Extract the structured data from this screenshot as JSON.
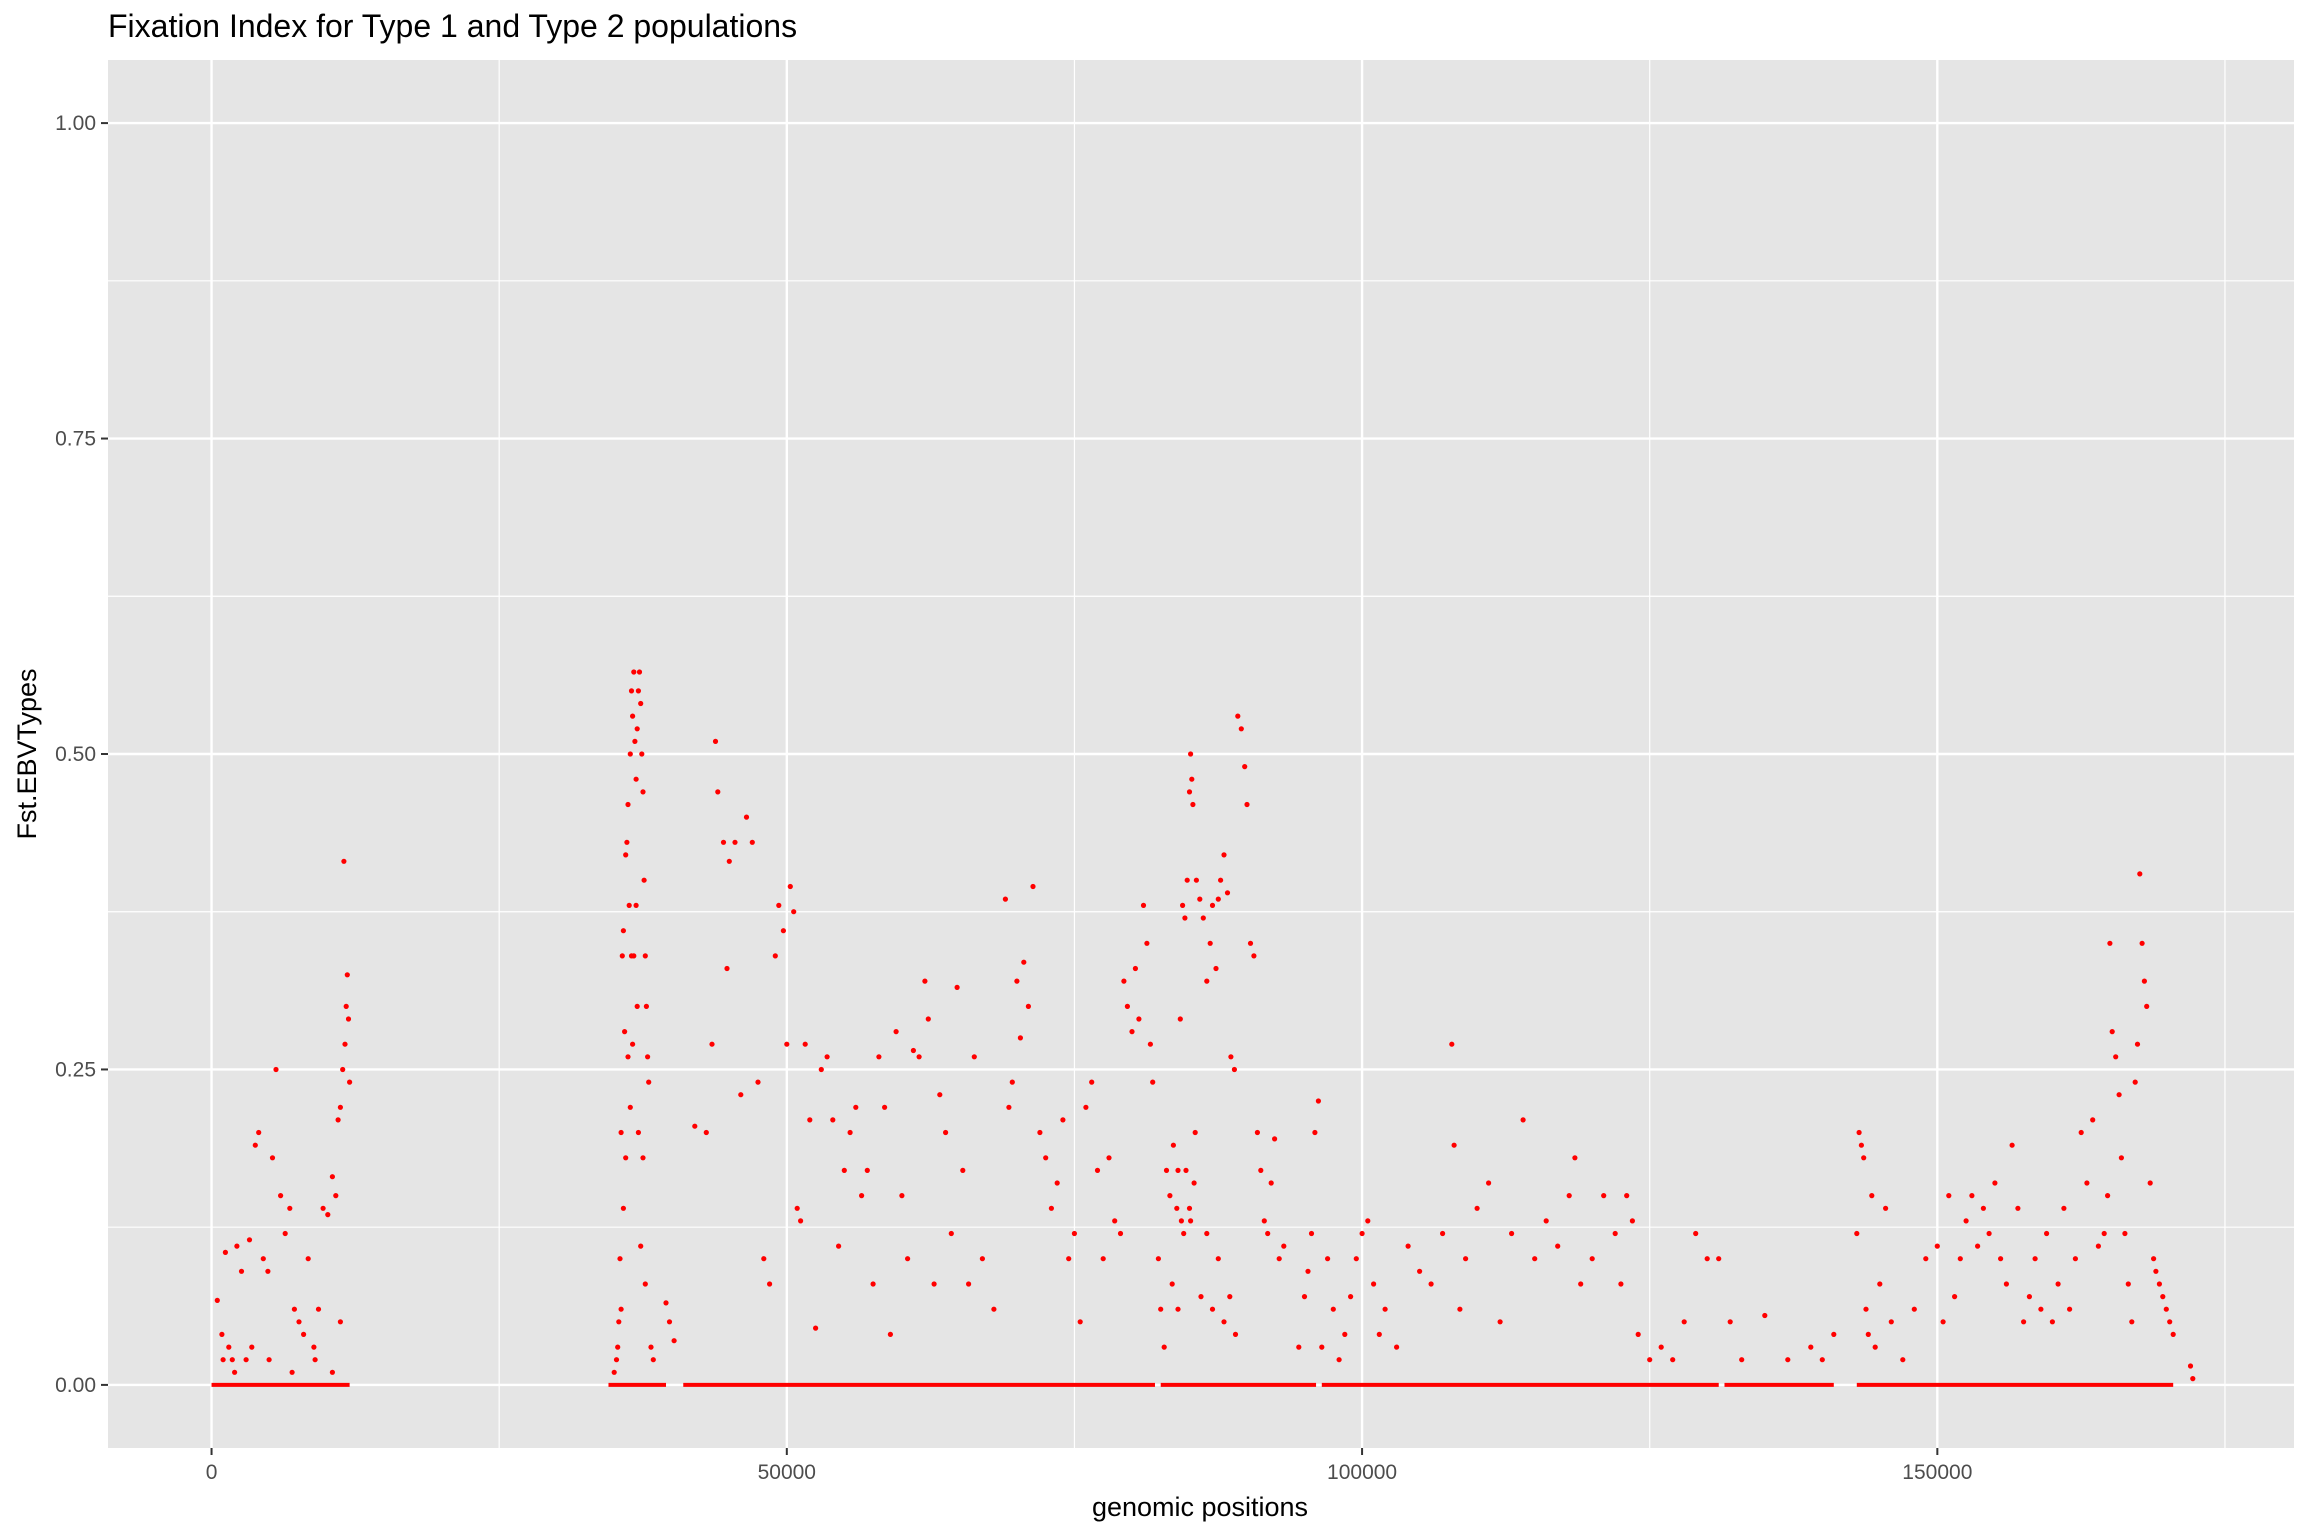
{
  "chart_data": {
    "type": "scatter",
    "title": "Fixation Index for Type 1 and Type 2 populations",
    "xlabel": "genomic positions",
    "ylabel": "Fst.EBVTypes",
    "xlim": [
      -9000,
      181000
    ],
    "ylim": [
      -0.05,
      1.05
    ],
    "x_ticks": [
      0,
      50000,
      100000,
      150000
    ],
    "x_tick_labels": [
      "0",
      "50000",
      "100000",
      "150000"
    ],
    "y_ticks": [
      0.0,
      0.25,
      0.5,
      0.75,
      1.0
    ],
    "y_tick_labels": [
      "0.00",
      "0.25",
      "0.50",
      "0.75",
      "1.00"
    ],
    "grid": true,
    "point_color": "#ff0000",
    "panel_color": "#e5e5e5",
    "grid_color": "#ffffff",
    "baseline_segments": [
      [
        0,
        12000
      ],
      [
        34500,
        39500
      ],
      [
        41000,
        82000
      ],
      [
        82500,
        96000
      ],
      [
        96500,
        131000
      ],
      [
        131500,
        141000
      ],
      [
        143000,
        170500
      ]
    ],
    "points": [
      [
        500,
        0.067
      ],
      [
        900,
        0.04
      ],
      [
        1200,
        0.105
      ],
      [
        1500,
        0.03
      ],
      [
        1800,
        0.02
      ],
      [
        2200,
        0.11
      ],
      [
        2600,
        0.09
      ],
      [
        3000,
        0.02
      ],
      [
        3300,
        0.115
      ],
      [
        3800,
        0.19
      ],
      [
        4100,
        0.2
      ],
      [
        4500,
        0.1
      ],
      [
        4900,
        0.09
      ],
      [
        5300,
        0.18
      ],
      [
        5600,
        0.25
      ],
      [
        6000,
        0.15
      ],
      [
        6400,
        0.12
      ],
      [
        6800,
        0.14
      ],
      [
        7200,
        0.06
      ],
      [
        7600,
        0.05
      ],
      [
        8000,
        0.04
      ],
      [
        8400,
        0.1
      ],
      [
        8900,
        0.03
      ],
      [
        9300,
        0.06
      ],
      [
        9700,
        0.14
      ],
      [
        10100,
        0.135
      ],
      [
        10500,
        0.165
      ],
      [
        10800,
        0.15
      ],
      [
        11000,
        0.21
      ],
      [
        11200,
        0.22
      ],
      [
        11400,
        0.25
      ],
      [
        11500,
        0.415
      ],
      [
        11600,
        0.27
      ],
      [
        11700,
        0.3
      ],
      [
        11800,
        0.325
      ],
      [
        11900,
        0.29
      ],
      [
        12000,
        0.24
      ],
      [
        1000,
        0.02
      ],
      [
        2000,
        0.01
      ],
      [
        3500,
        0.03
      ],
      [
        5000,
        0.02
      ],
      [
        7000,
        0.01
      ],
      [
        9000,
        0.02
      ],
      [
        10500,
        0.01
      ],
      [
        11200,
        0.05
      ],
      [
        35000,
        0.01
      ],
      [
        35200,
        0.02
      ],
      [
        35400,
        0.05
      ],
      [
        35500,
        0.1
      ],
      [
        35600,
        0.2
      ],
      [
        35700,
        0.34
      ],
      [
        35800,
        0.36
      ],
      [
        35900,
        0.28
      ],
      [
        36000,
        0.42
      ],
      [
        36100,
        0.43
      ],
      [
        36200,
        0.46
      ],
      [
        36300,
        0.38
      ],
      [
        36400,
        0.5
      ],
      [
        36500,
        0.55
      ],
      [
        36600,
        0.53
      ],
      [
        36700,
        0.565
      ],
      [
        36800,
        0.51
      ],
      [
        36900,
        0.48
      ],
      [
        37000,
        0.52
      ],
      [
        37100,
        0.55
      ],
      [
        37200,
        0.565
      ],
      [
        37300,
        0.54
      ],
      [
        37400,
        0.5
      ],
      [
        37500,
        0.47
      ],
      [
        37600,
        0.4
      ],
      [
        37700,
        0.34
      ],
      [
        37800,
        0.3
      ],
      [
        37900,
        0.26
      ],
      [
        38000,
        0.24
      ],
      [
        36500,
        0.34
      ],
      [
        36700,
        0.34
      ],
      [
        36900,
        0.38
      ],
      [
        37000,
        0.3
      ],
      [
        36200,
        0.26
      ],
      [
        36000,
        0.18
      ],
      [
        35800,
        0.14
      ],
      [
        36400,
        0.22
      ],
      [
        36600,
        0.27
      ],
      [
        37100,
        0.2
      ],
      [
        37300,
        0.11
      ],
      [
        37500,
        0.18
      ],
      [
        37700,
        0.08
      ],
      [
        38200,
        0.03
      ],
      [
        38400,
        0.02
      ],
      [
        39500,
        0.065
      ],
      [
        39800,
        0.05
      ],
      [
        40200,
        0.035
      ],
      [
        35300,
        0.03
      ],
      [
        35600,
        0.06
      ],
      [
        42000,
        0.205
      ],
      [
        43000,
        0.2
      ],
      [
        43500,
        0.27
      ],
      [
        43800,
        0.51
      ],
      [
        44000,
        0.47
      ],
      [
        44500,
        0.43
      ],
      [
        45000,
        0.415
      ],
      [
        45500,
        0.43
      ],
      [
        44800,
        0.33
      ],
      [
        46500,
        0.45
      ],
      [
        46000,
        0.23
      ],
      [
        47000,
        0.43
      ],
      [
        47500,
        0.24
      ],
      [
        48000,
        0.1
      ],
      [
        48500,
        0.08
      ],
      [
        49000,
        0.34
      ],
      [
        49300,
        0.38
      ],
      [
        49700,
        0.36
      ],
      [
        50000,
        0.27
      ],
      [
        50300,
        0.395
      ],
      [
        50600,
        0.375
      ],
      [
        50900,
        0.14
      ],
      [
        51200,
        0.13
      ],
      [
        51600,
        0.27
      ],
      [
        52000,
        0.21
      ],
      [
        52500,
        0.045
      ],
      [
        53000,
        0.25
      ],
      [
        53500,
        0.26
      ],
      [
        54000,
        0.21
      ],
      [
        54500,
        0.11
      ],
      [
        55000,
        0.17
      ],
      [
        55500,
        0.2
      ],
      [
        56000,
        0.22
      ],
      [
        56500,
        0.15
      ],
      [
        57000,
        0.17
      ],
      [
        57500,
        0.08
      ],
      [
        58000,
        0.26
      ],
      [
        58500,
        0.22
      ],
      [
        59000,
        0.04
      ],
      [
        59500,
        0.28
      ],
      [
        60000,
        0.15
      ],
      [
        60500,
        0.1
      ],
      [
        61000,
        0.265
      ],
      [
        61500,
        0.26
      ],
      [
        62000,
        0.32
      ],
      [
        62300,
        0.29
      ],
      [
        62800,
        0.08
      ],
      [
        63300,
        0.23
      ],
      [
        63800,
        0.2
      ],
      [
        64300,
        0.12
      ],
      [
        64800,
        0.315
      ],
      [
        65300,
        0.17
      ],
      [
        65800,
        0.08
      ],
      [
        66300,
        0.26
      ],
      [
        67000,
        0.1
      ],
      [
        68000,
        0.06
      ],
      [
        69000,
        0.385
      ],
      [
        69300,
        0.22
      ],
      [
        69600,
        0.24
      ],
      [
        70000,
        0.32
      ],
      [
        70300,
        0.275
      ],
      [
        70600,
        0.335
      ],
      [
        71000,
        0.3
      ],
      [
        71400,
        0.395
      ],
      [
        72000,
        0.2
      ],
      [
        72500,
        0.18
      ],
      [
        73000,
        0.14
      ],
      [
        73500,
        0.16
      ],
      [
        74000,
        0.21
      ],
      [
        74500,
        0.1
      ],
      [
        75000,
        0.12
      ],
      [
        75500,
        0.05
      ],
      [
        76000,
        0.22
      ],
      [
        76500,
        0.24
      ],
      [
        77000,
        0.17
      ],
      [
        77500,
        0.1
      ],
      [
        78000,
        0.18
      ],
      [
        78500,
        0.13
      ],
      [
        79000,
        0.12
      ],
      [
        79300,
        0.32
      ],
      [
        79600,
        0.3
      ],
      [
        80000,
        0.28
      ],
      [
        80300,
        0.33
      ],
      [
        80600,
        0.29
      ],
      [
        81000,
        0.38
      ],
      [
        81300,
        0.35
      ],
      [
        81600,
        0.27
      ],
      [
        81800,
        0.24
      ],
      [
        82300,
        0.1
      ],
      [
        82500,
        0.06
      ],
      [
        82800,
        0.03
      ],
      [
        83000,
        0.17
      ],
      [
        83300,
        0.15
      ],
      [
        83600,
        0.19
      ],
      [
        83900,
        0.14
      ],
      [
        84200,
        0.29
      ],
      [
        84400,
        0.38
      ],
      [
        84600,
        0.37
      ],
      [
        84800,
        0.4
      ],
      [
        85000,
        0.47
      ],
      [
        85100,
        0.5
      ],
      [
        85200,
        0.48
      ],
      [
        85300,
        0.46
      ],
      [
        85600,
        0.4
      ],
      [
        85900,
        0.385
      ],
      [
        86200,
        0.37
      ],
      [
        86500,
        0.32
      ],
      [
        86800,
        0.35
      ],
      [
        87000,
        0.38
      ],
      [
        87300,
        0.33
      ],
      [
        87500,
        0.385
      ],
      [
        87700,
        0.4
      ],
      [
        88000,
        0.42
      ],
      [
        88300,
        0.39
      ],
      [
        88600,
        0.26
      ],
      [
        88900,
        0.25
      ],
      [
        89200,
        0.53
      ],
      [
        89500,
        0.52
      ],
      [
        89800,
        0.49
      ],
      [
        90000,
        0.46
      ],
      [
        90300,
        0.35
      ],
      [
        90600,
        0.34
      ],
      [
        90900,
        0.2
      ],
      [
        91200,
        0.17
      ],
      [
        91500,
        0.13
      ],
      [
        91800,
        0.12
      ],
      [
        92100,
        0.16
      ],
      [
        92400,
        0.195
      ],
      [
        92800,
        0.1
      ],
      [
        93200,
        0.11
      ],
      [
        83500,
        0.08
      ],
      [
        84000,
        0.06
      ],
      [
        84500,
        0.12
      ],
      [
        85000,
        0.14
      ],
      [
        85500,
        0.2
      ],
      [
        86000,
        0.07
      ],
      [
        86500,
        0.12
      ],
      [
        87000,
        0.06
      ],
      [
        87500,
        0.1
      ],
      [
        88000,
        0.05
      ],
      [
        88500,
        0.07
      ],
      [
        89000,
        0.04
      ],
      [
        84000,
        0.17
      ],
      [
        84700,
        0.17
      ],
      [
        85400,
        0.16
      ],
      [
        84300,
        0.13
      ],
      [
        85100,
        0.13
      ],
      [
        94500,
        0.03
      ],
      [
        95000,
        0.07
      ],
      [
        95300,
        0.09
      ],
      [
        95600,
        0.12
      ],
      [
        95900,
        0.2
      ],
      [
        96200,
        0.225
      ],
      [
        96500,
        0.03
      ],
      [
        97000,
        0.1
      ],
      [
        97500,
        0.06
      ],
      [
        98000,
        0.02
      ],
      [
        98500,
        0.04
      ],
      [
        99000,
        0.07
      ],
      [
        99500,
        0.1
      ],
      [
        100000,
        0.12
      ],
      [
        100500,
        0.13
      ],
      [
        101000,
        0.08
      ],
      [
        101500,
        0.04
      ],
      [
        102000,
        0.06
      ],
      [
        103000,
        0.03
      ],
      [
        104000,
        0.11
      ],
      [
        105000,
        0.09
      ],
      [
        106000,
        0.08
      ],
      [
        107000,
        0.12
      ],
      [
        107800,
        0.27
      ],
      [
        108000,
        0.19
      ],
      [
        108500,
        0.06
      ],
      [
        109000,
        0.1
      ],
      [
        110000,
        0.14
      ],
      [
        111000,
        0.16
      ],
      [
        112000,
        0.05
      ],
      [
        113000,
        0.12
      ],
      [
        114000,
        0.21
      ],
      [
        115000,
        0.1
      ],
      [
        116000,
        0.13
      ],
      [
        117000,
        0.11
      ],
      [
        118000,
        0.15
      ],
      [
        118500,
        0.18
      ],
      [
        119000,
        0.08
      ],
      [
        120000,
        0.1
      ],
      [
        121000,
        0.15
      ],
      [
        122000,
        0.12
      ],
      [
        122500,
        0.08
      ],
      [
        123000,
        0.15
      ],
      [
        123500,
        0.13
      ],
      [
        124000,
        0.04
      ],
      [
        125000,
        0.02
      ],
      [
        126000,
        0.03
      ],
      [
        127000,
        0.02
      ],
      [
        128000,
        0.05
      ],
      [
        129000,
        0.12
      ],
      [
        130000,
        0.1
      ],
      [
        131000,
        0.1
      ],
      [
        132000,
        0.05
      ],
      [
        133000,
        0.02
      ],
      [
        135000,
        0.055
      ],
      [
        137000,
        0.02
      ],
      [
        139000,
        0.03
      ],
      [
        140000,
        0.02
      ],
      [
        141000,
        0.04
      ],
      [
        143000,
        0.12
      ],
      [
        143200,
        0.2
      ],
      [
        143400,
        0.19
      ],
      [
        143600,
        0.18
      ],
      [
        143800,
        0.06
      ],
      [
        144000,
        0.04
      ],
      [
        144300,
        0.15
      ],
      [
        144600,
        0.03
      ],
      [
        145000,
        0.08
      ],
      [
        145500,
        0.14
      ],
      [
        146000,
        0.05
      ],
      [
        147000,
        0.02
      ],
      [
        148000,
        0.06
      ],
      [
        149000,
        0.1
      ],
      [
        150000,
        0.11
      ],
      [
        150500,
        0.05
      ],
      [
        151000,
        0.15
      ],
      [
        151500,
        0.07
      ],
      [
        152000,
        0.1
      ],
      [
        152500,
        0.13
      ],
      [
        153000,
        0.15
      ],
      [
        153500,
        0.11
      ],
      [
        154000,
        0.14
      ],
      [
        154500,
        0.12
      ],
      [
        155000,
        0.16
      ],
      [
        155500,
        0.1
      ],
      [
        156000,
        0.08
      ],
      [
        156500,
        0.19
      ],
      [
        157000,
        0.14
      ],
      [
        157500,
        0.05
      ],
      [
        158000,
        0.07
      ],
      [
        158500,
        0.1
      ],
      [
        159000,
        0.06
      ],
      [
        159500,
        0.12
      ],
      [
        160000,
        0.05
      ],
      [
        160500,
        0.08
      ],
      [
        161000,
        0.14
      ],
      [
        161500,
        0.06
      ],
      [
        162000,
        0.1
      ],
      [
        162500,
        0.2
      ],
      [
        163000,
        0.16
      ],
      [
        163500,
        0.21
      ],
      [
        164000,
        0.11
      ],
      [
        164500,
        0.12
      ],
      [
        164800,
        0.15
      ],
      [
        165000,
        0.35
      ],
      [
        165200,
        0.28
      ],
      [
        165500,
        0.26
      ],
      [
        165800,
        0.23
      ],
      [
        166000,
        0.18
      ],
      [
        166300,
        0.12
      ],
      [
        166600,
        0.08
      ],
      [
        166900,
        0.05
      ],
      [
        167200,
        0.24
      ],
      [
        167400,
        0.27
      ],
      [
        167600,
        0.405
      ],
      [
        167800,
        0.35
      ],
      [
        168000,
        0.32
      ],
      [
        168200,
        0.3
      ],
      [
        168500,
        0.16
      ],
      [
        168800,
        0.1
      ],
      [
        169000,
        0.09
      ],
      [
        169300,
        0.08
      ],
      [
        169600,
        0.07
      ],
      [
        169900,
        0.06
      ],
      [
        170200,
        0.05
      ],
      [
        170500,
        0.04
      ],
      [
        172000,
        0.015
      ],
      [
        172200,
        0.005
      ]
    ]
  }
}
